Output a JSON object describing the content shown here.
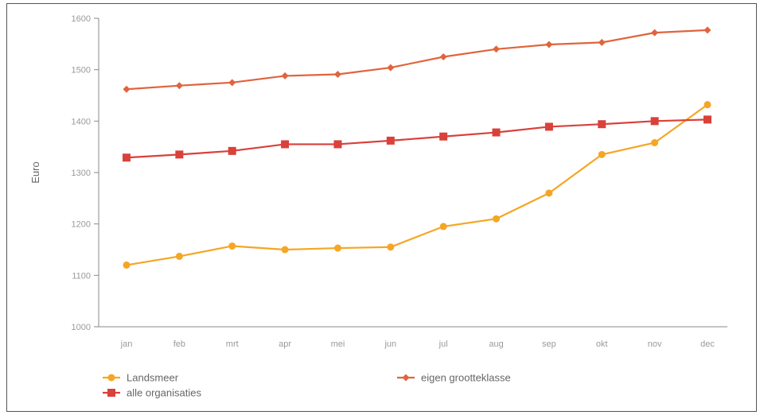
{
  "chart_data": {
    "type": "line",
    "ylabel": "Euro",
    "ylim": [
      1000,
      1600
    ],
    "yticks": [
      1000,
      1100,
      1200,
      1300,
      1400,
      1500,
      1600
    ],
    "categories": [
      "jan",
      "feb",
      "mrt",
      "apr",
      "mei",
      "jun",
      "jul",
      "aug",
      "sep",
      "okt",
      "nov",
      "dec"
    ],
    "grid": false,
    "legend_position": "bottom",
    "series": [
      {
        "name": "Landsmeer",
        "color": "#f5a623",
        "marker": "circle",
        "values": [
          1120,
          1137,
          1157,
          1150,
          1153,
          1155,
          1195,
          1210,
          1260,
          1335,
          1358,
          1432
        ]
      },
      {
        "name": "eigen grootteklasse",
        "color": "#e0643c",
        "marker": "diamond",
        "values": [
          1462,
          1469,
          1475,
          1488,
          1491,
          1504,
          1525,
          1540,
          1549,
          1553,
          1572,
          1577
        ]
      },
      {
        "name": "alle organisaties",
        "color": "#d9413a",
        "marker": "square",
        "values": [
          1329,
          1335,
          1342,
          1355,
          1355,
          1362,
          1370,
          1378,
          1389,
          1394,
          1400,
          1403
        ]
      }
    ]
  }
}
